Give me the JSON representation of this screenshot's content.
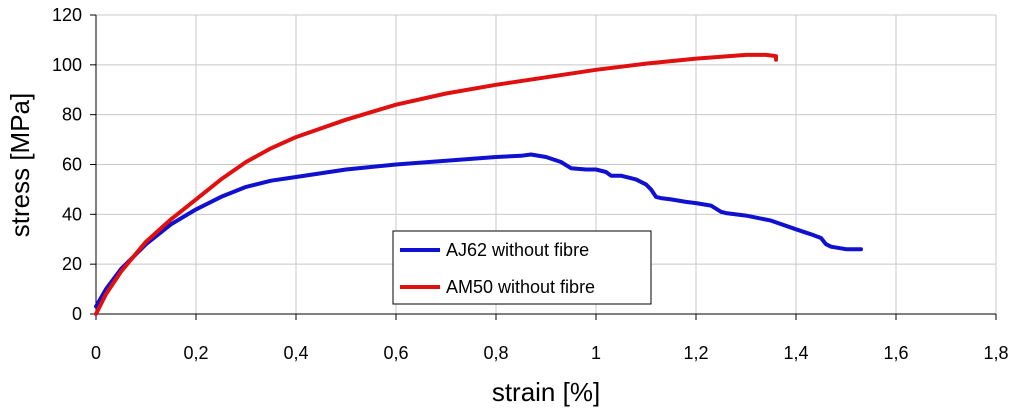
{
  "chart_data": {
    "type": "line",
    "title": "",
    "xlabel": "strain [%]",
    "ylabel": "stress [MPa]",
    "xlim": [
      0,
      1.8
    ],
    "ylim": [
      0,
      120
    ],
    "x_ticks": [
      0,
      0.2,
      0.4,
      0.6,
      0.8,
      1,
      1.2,
      1.4,
      1.6,
      1.8
    ],
    "x_tick_labels": [
      "0",
      "0,2",
      "0,4",
      "0,6",
      "0,8",
      "1",
      "1,2",
      "1,4",
      "1,6",
      "1,8"
    ],
    "y_ticks": [
      0,
      20,
      40,
      60,
      80,
      100,
      120
    ],
    "y_tick_labels": [
      "0",
      "20",
      "40",
      "60",
      "80",
      "100",
      "120"
    ],
    "grid": true,
    "legend_position": "center-bottom",
    "series": [
      {
        "name": "AJ62 without fibre",
        "color": "#1010d0",
        "x": [
          0,
          0.02,
          0.05,
          0.1,
          0.15,
          0.2,
          0.25,
          0.3,
          0.35,
          0.4,
          0.5,
          0.6,
          0.7,
          0.8,
          0.85,
          0.87,
          0.9,
          0.93,
          0.95,
          0.98,
          1.0,
          1.02,
          1.03,
          1.05,
          1.08,
          1.1,
          1.11,
          1.12,
          1.13,
          1.15,
          1.18,
          1.2,
          1.23,
          1.25,
          1.26,
          1.3,
          1.35,
          1.4,
          1.43,
          1.45,
          1.46,
          1.47,
          1.5,
          1.53
        ],
        "y": [
          3,
          10,
          18,
          28,
          36,
          42,
          47,
          51,
          53.5,
          55,
          58,
          60,
          61.5,
          63,
          63.5,
          64,
          63,
          61,
          58.5,
          58,
          58,
          57,
          55.5,
          55.5,
          54,
          52,
          50,
          47,
          46.5,
          46,
          45,
          44.5,
          43.5,
          41,
          40.5,
          39.5,
          37.5,
          34,
          32,
          30.5,
          28,
          27,
          26,
          26
        ]
      },
      {
        "name": "AM50 without fibre",
        "color": "#e01010",
        "x": [
          0,
          0.02,
          0.05,
          0.1,
          0.15,
          0.2,
          0.25,
          0.3,
          0.35,
          0.4,
          0.5,
          0.6,
          0.7,
          0.8,
          0.9,
          1.0,
          1.1,
          1.2,
          1.3,
          1.34,
          1.36,
          1.36
        ],
        "y": [
          0,
          8,
          17,
          29,
          38,
          46,
          54,
          61,
          66.5,
          71,
          78,
          84,
          88.5,
          92,
          95,
          98,
          100.5,
          102.5,
          104,
          104,
          103.5,
          102
        ]
      }
    ]
  }
}
